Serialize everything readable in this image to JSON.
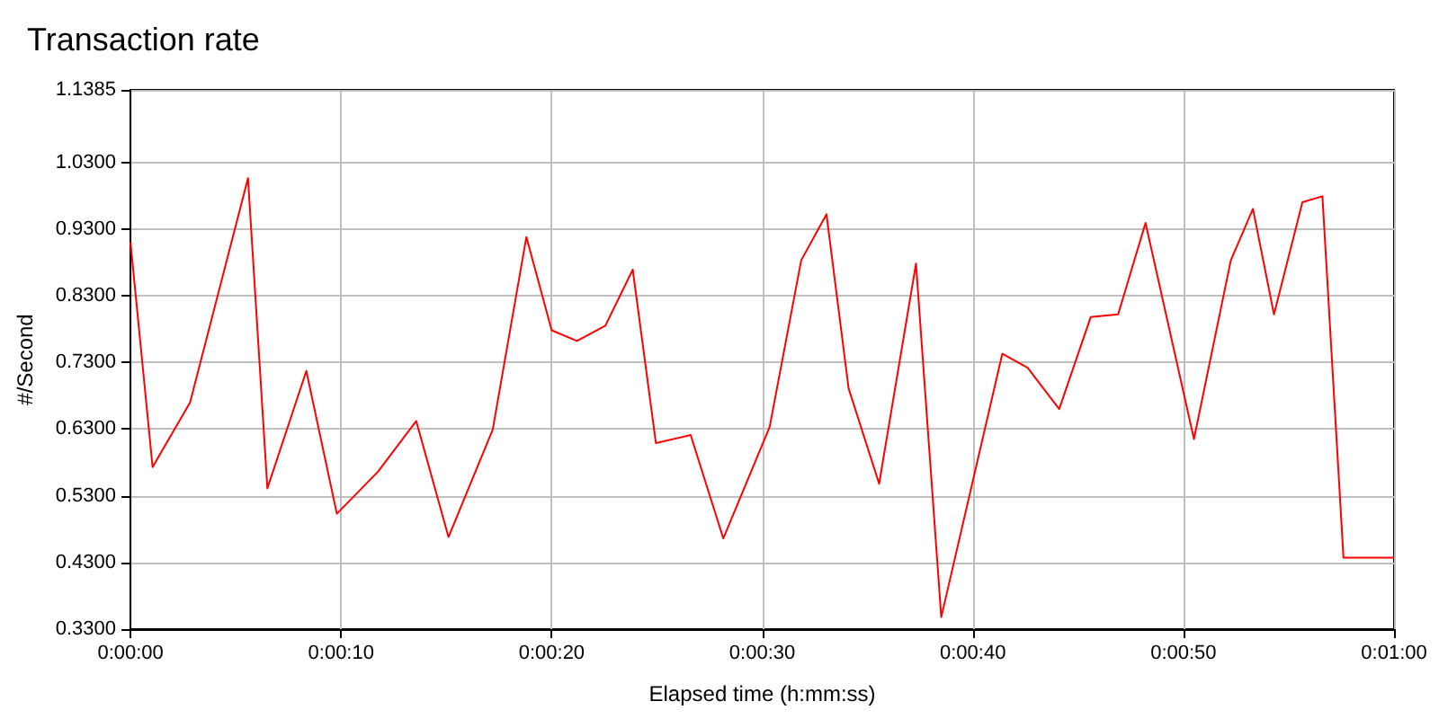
{
  "chart_data": {
    "type": "line",
    "title": "Transaction rate",
    "xlabel": "Elapsed time (h:mm:ss)",
    "ylabel": "#/Second",
    "x": [
      0,
      1.05,
      2.83,
      5.58,
      6.5,
      8.35,
      9.8,
      11.75,
      13.57,
      15.1,
      17.2,
      18.8,
      20.0,
      21.2,
      22.55,
      23.85,
      24.95,
      26.6,
      28.15,
      30.35,
      31.85,
      33.05,
      34.1,
      35.55,
      37.3,
      38.5,
      41.4,
      42.6,
      44.1,
      45.6,
      46.9,
      48.2,
      50.5,
      52.25,
      53.3,
      54.3,
      55.65,
      56.6,
      57.6,
      60
    ],
    "series": [
      {
        "color": "#ff0000",
        "values": [
          0.91,
          0.573,
          0.67,
          1.006,
          0.541,
          0.717,
          0.503,
          0.566,
          0.642,
          0.468,
          0.629,
          0.918,
          0.778,
          0.762,
          0.785,
          0.869,
          0.609,
          0.621,
          0.466,
          0.633,
          0.883,
          0.952,
          0.691,
          0.548,
          0.878,
          0.348,
          0.743,
          0.722,
          0.66,
          0.798,
          0.802,
          0.939,
          0.615,
          0.883,
          0.96,
          0.802,
          0.97,
          0.979,
          0.437,
          0.437
        ]
      }
    ],
    "xlim": [
      0,
      60
    ],
    "xticks": [
      {
        "value": 0,
        "label": "0:00:00"
      },
      {
        "value": 10,
        "label": "0:00:10"
      },
      {
        "value": 20,
        "label": "0:00:20"
      },
      {
        "value": 30,
        "label": "0:00:30"
      },
      {
        "value": 40,
        "label": "0:00:40"
      },
      {
        "value": 50,
        "label": "0:00:50"
      },
      {
        "value": 60,
        "label": "0:01:00"
      }
    ],
    "ylim": [
      0.33,
      1.1385
    ],
    "yticks": [
      {
        "value": 0.33,
        "label": "0.3300"
      },
      {
        "value": 0.43,
        "label": "0.4300"
      },
      {
        "value": 0.53,
        "label": "0.5300"
      },
      {
        "value": 0.63,
        "label": "0.6300"
      },
      {
        "value": 0.73,
        "label": "0.7300"
      },
      {
        "value": 0.83,
        "label": "0.8300"
      },
      {
        "value": 0.93,
        "label": "0.9300"
      },
      {
        "value": 1.03,
        "label": "1.0300"
      },
      {
        "value": 1.1385,
        "label": "1.1385"
      }
    ],
    "grid": true,
    "marker": "none",
    "line_style": "solid"
  }
}
